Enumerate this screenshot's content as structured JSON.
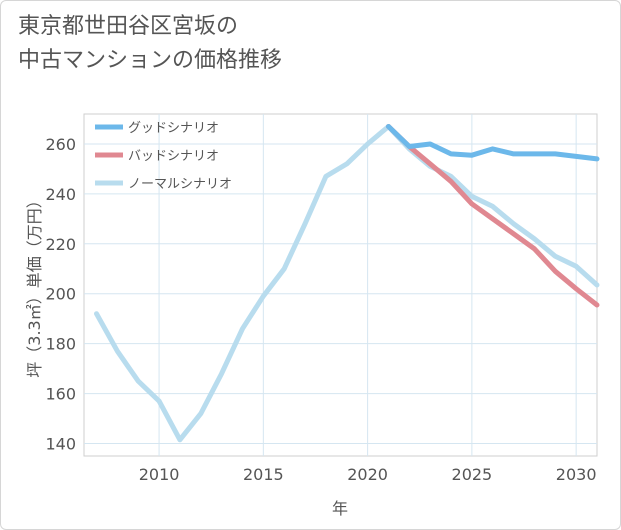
{
  "chart_data": {
    "type": "line",
    "title_line1": "東京都世田谷区宮坂の",
    "title_line2": "中古マンションの価格推移",
    "xlabel": "年",
    "ylabel": "坪（3.3㎡）単価（万円）",
    "xlim": [
      2006.4,
      2031
    ],
    "ylim": [
      135,
      272
    ],
    "xticks": [
      2010,
      2015,
      2020,
      2025,
      2030
    ],
    "yticks": [
      140,
      160,
      180,
      200,
      220,
      240,
      260
    ],
    "grid": true,
    "legend_position": "top-left",
    "series": [
      {
        "name": "グッドシナリオ",
        "color": "#6cb8ea",
        "x": [
          2021,
          2022,
          2023,
          2024,
          2025,
          2026,
          2027,
          2028,
          2029,
          2030,
          2031
        ],
        "y": [
          267,
          259,
          260,
          256,
          255.5,
          258,
          256,
          256,
          256,
          255,
          254
        ]
      },
      {
        "name": "バッドシナリオ",
        "color": "#e08891",
        "x": [
          2021,
          2022,
          2023,
          2024,
          2025,
          2026,
          2027,
          2028,
          2029,
          2030,
          2031
        ],
        "y": [
          267,
          259,
          252,
          245,
          236,
          230,
          224,
          218,
          209,
          202,
          195.5
        ]
      },
      {
        "name": "ノーマルシナリオ",
        "color": "#b8dcee",
        "x": [
          2007,
          2008,
          2009,
          2010,
          2011,
          2012,
          2013,
          2014,
          2015,
          2016,
          2017,
          2018,
          2019,
          2020,
          2021,
          2022,
          2023,
          2024,
          2025,
          2026,
          2027,
          2028,
          2029,
          2030,
          2031
        ],
        "y": [
          192,
          177,
          165,
          157,
          141.5,
          152,
          168,
          186,
          199,
          210,
          228,
          247,
          252,
          260,
          267,
          258,
          251,
          247,
          239,
          235,
          228,
          222,
          215,
          211,
          203.5
        ]
      }
    ]
  }
}
